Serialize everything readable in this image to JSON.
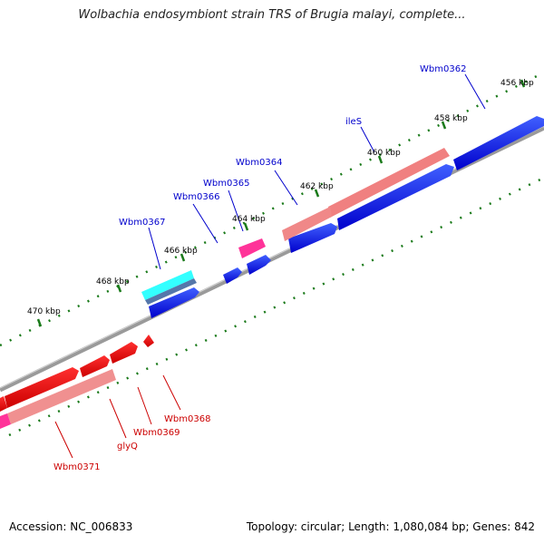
{
  "title": "Wolbachia endosymbiont strain TRS of Brugia malayi, complete...",
  "footer": {
    "accession": "Accession: NC_006833",
    "summary": "Topology: circular; Length: 1,080,084 bp; Genes: 842"
  },
  "colors": {
    "backbone": "#777777",
    "tick": "#1a7a1a",
    "forward_gene": "#0000ee",
    "forward_label": "#0000cc",
    "reverse_gene": "#ee0000",
    "reverse_label": "#cc0000",
    "cds_reverse": "#f09090",
    "cds_forward": "#f09090",
    "rrna": "#ff3399",
    "trna": "#33ffff"
  },
  "ticks": [
    {
      "label": "456 kbp"
    },
    {
      "label": "458 kbp"
    },
    {
      "label": "460 kbp"
    },
    {
      "label": "462 kbp"
    },
    {
      "label": "464 kbp"
    },
    {
      "label": "466 kbp"
    },
    {
      "label": "468 kbp"
    },
    {
      "label": "470 kbp"
    }
  ],
  "forward_labels": [
    "Wbm0362",
    "ileS",
    "Wbm0364",
    "Wbm0365",
    "Wbm0366",
    "Wbm0367"
  ],
  "reverse_labels": [
    "Wbm0368",
    "Wbm0369",
    "glyQ",
    "Wbm0371"
  ]
}
